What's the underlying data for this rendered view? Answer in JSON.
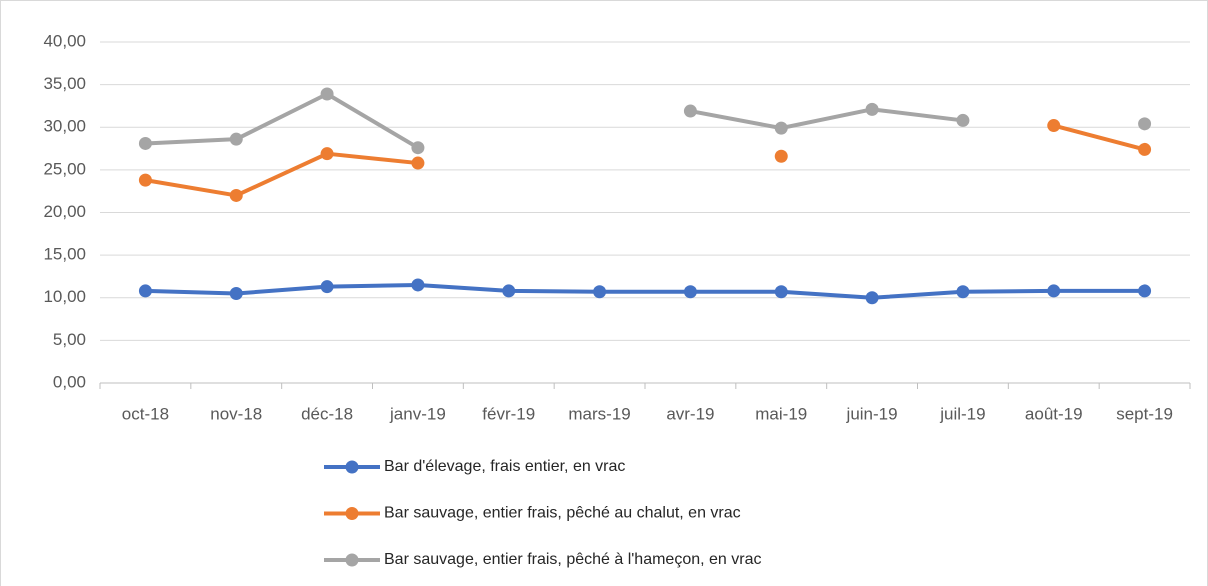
{
  "chart_data": {
    "type": "line",
    "categories": [
      "oct-18",
      "nov-18",
      "déc-18",
      "janv-19",
      "févr-19",
      "mars-19",
      "avr-19",
      "mai-19",
      "juin-19",
      "juil-19",
      "août-19",
      "sept-19"
    ],
    "series": [
      {
        "name": "Bar d'élevage, frais entier, en vrac",
        "color": "#4472c4",
        "values": [
          10.8,
          10.5,
          11.3,
          11.5,
          10.8,
          10.7,
          10.7,
          10.7,
          10.0,
          10.7,
          10.8,
          10.8
        ]
      },
      {
        "name": "Bar sauvage, entier frais, pêché au chalut, en vrac",
        "color": "#ed7d31",
        "values": [
          23.8,
          22.0,
          26.9,
          25.8,
          null,
          null,
          null,
          26.6,
          null,
          null,
          30.2,
          27.4
        ]
      },
      {
        "name": "Bar sauvage, entier frais, pêché à l'hameçon, en vrac",
        "color": "#a5a5a5",
        "values": [
          28.1,
          28.6,
          33.9,
          27.6,
          null,
          null,
          31.9,
          29.9,
          32.1,
          30.8,
          null,
          30.4
        ]
      }
    ],
    "ylim": [
      0,
      40
    ],
    "yticks": [
      {
        "value": 0,
        "label": "0,00"
      },
      {
        "value": 5,
        "label": "5,00"
      },
      {
        "value": 10,
        "label": "10,00"
      },
      {
        "value": 15,
        "label": "15,00"
      },
      {
        "value": 20,
        "label": "20,00"
      },
      {
        "value": 25,
        "label": "25,00"
      },
      {
        "value": 30,
        "label": "30,00"
      },
      {
        "value": 35,
        "label": "35,00"
      },
      {
        "value": 40,
        "label": "40,00"
      }
    ],
    "grid": true
  }
}
